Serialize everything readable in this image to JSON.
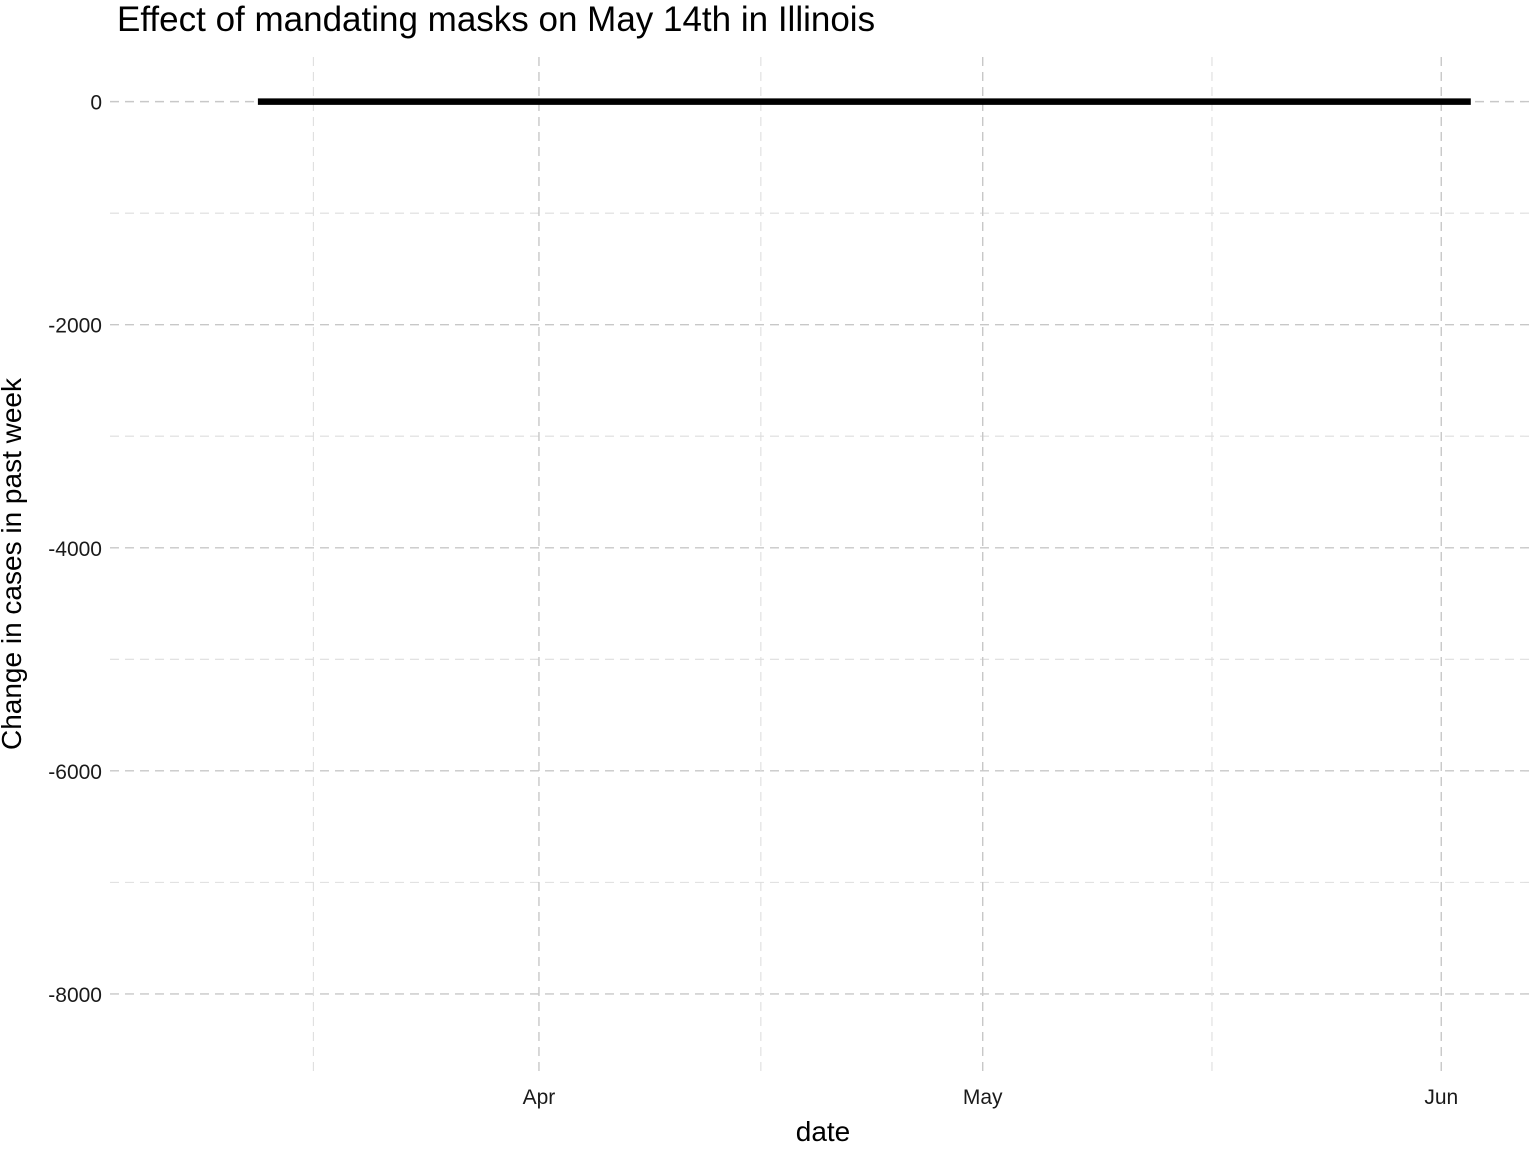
{
  "chart_data": {
    "type": "line",
    "title": "Effect of mandating masks on May 14th in Illinois",
    "xlabel": "date",
    "ylabel": "Change in cases in past week",
    "x_ticks": [
      {
        "label": "Apr",
        "date": "2020-04-01"
      },
      {
        "label": "May",
        "date": "2020-05-01"
      },
      {
        "label": "Jun",
        "date": "2020-06-01"
      }
    ],
    "y_ticks": [
      0,
      -2000,
      -4000,
      -6000,
      -8000
    ],
    "xlim": [
      "2020-03-03",
      "2020-06-07"
    ],
    "ylim": [
      -8700,
      400
    ],
    "grid": true,
    "line_color": "#000000",
    "band_color": "#bebebe",
    "series": [
      {
        "x": [
          "2020-03-13",
          "2020-03-14",
          "2020-03-15",
          "2020-03-16",
          "2020-03-17",
          "2020-03-18",
          "2020-03-19",
          "2020-03-20",
          "2020-03-21",
          "2020-03-22",
          "2020-03-23",
          "2020-03-24",
          "2020-03-25",
          "2020-03-26",
          "2020-03-27",
          "2020-03-28",
          "2020-03-29",
          "2020-03-30",
          "2020-03-31",
          "2020-04-01",
          "2020-04-02",
          "2020-04-03",
          "2020-04-04",
          "2020-04-05",
          "2020-04-06",
          "2020-04-07",
          "2020-04-08",
          "2020-04-09",
          "2020-04-10",
          "2020-04-11",
          "2020-04-12",
          "2020-04-13",
          "2020-04-14",
          "2020-04-15",
          "2020-04-16",
          "2020-04-17",
          "2020-04-18",
          "2020-04-19",
          "2020-04-20",
          "2020-04-21",
          "2020-04-22",
          "2020-04-23",
          "2020-04-24",
          "2020-04-25",
          "2020-04-26",
          "2020-04-27",
          "2020-04-28",
          "2020-04-29",
          "2020-04-30",
          "2020-05-01",
          "2020-05-02",
          "2020-05-03",
          "2020-05-04",
          "2020-05-05",
          "2020-05-06",
          "2020-05-07",
          "2020-05-08",
          "2020-05-09",
          "2020-05-10",
          "2020-05-11",
          "2020-05-12",
          "2020-05-13",
          "2020-05-14",
          "2020-05-15",
          "2020-05-16",
          "2020-05-17",
          "2020-05-18",
          "2020-05-19",
          "2020-05-20",
          "2020-05-21",
          "2020-05-22",
          "2020-05-23",
          "2020-05-24",
          "2020-05-25",
          "2020-05-26",
          "2020-05-27",
          "2020-05-28",
          "2020-05-29",
          "2020-05-30",
          "2020-05-31",
          "2020-06-01",
          "2020-06-02",
          "2020-06-03"
        ],
        "y": [
          0,
          0,
          0,
          0,
          0,
          0,
          0,
          0,
          0,
          0,
          0,
          0,
          0,
          0,
          0,
          0,
          0,
          0,
          0,
          0,
          0,
          0,
          0,
          0,
          0,
          0,
          0,
          0,
          0,
          0,
          0,
          0,
          0,
          0,
          0,
          0,
          0,
          0,
          0,
          0,
          0,
          0,
          0,
          0,
          0,
          0,
          0,
          0,
          0,
          0,
          0,
          0,
          0,
          0,
          0,
          0,
          0,
          0,
          0,
          0,
          0,
          0,
          0,
          0,
          0,
          0,
          0,
          0,
          0,
          0,
          0,
          0,
          0,
          0,
          0,
          0,
          0,
          0,
          0,
          0,
          0,
          0,
          0
        ],
        "lower": [],
        "upper": []
      }
    ]
  }
}
